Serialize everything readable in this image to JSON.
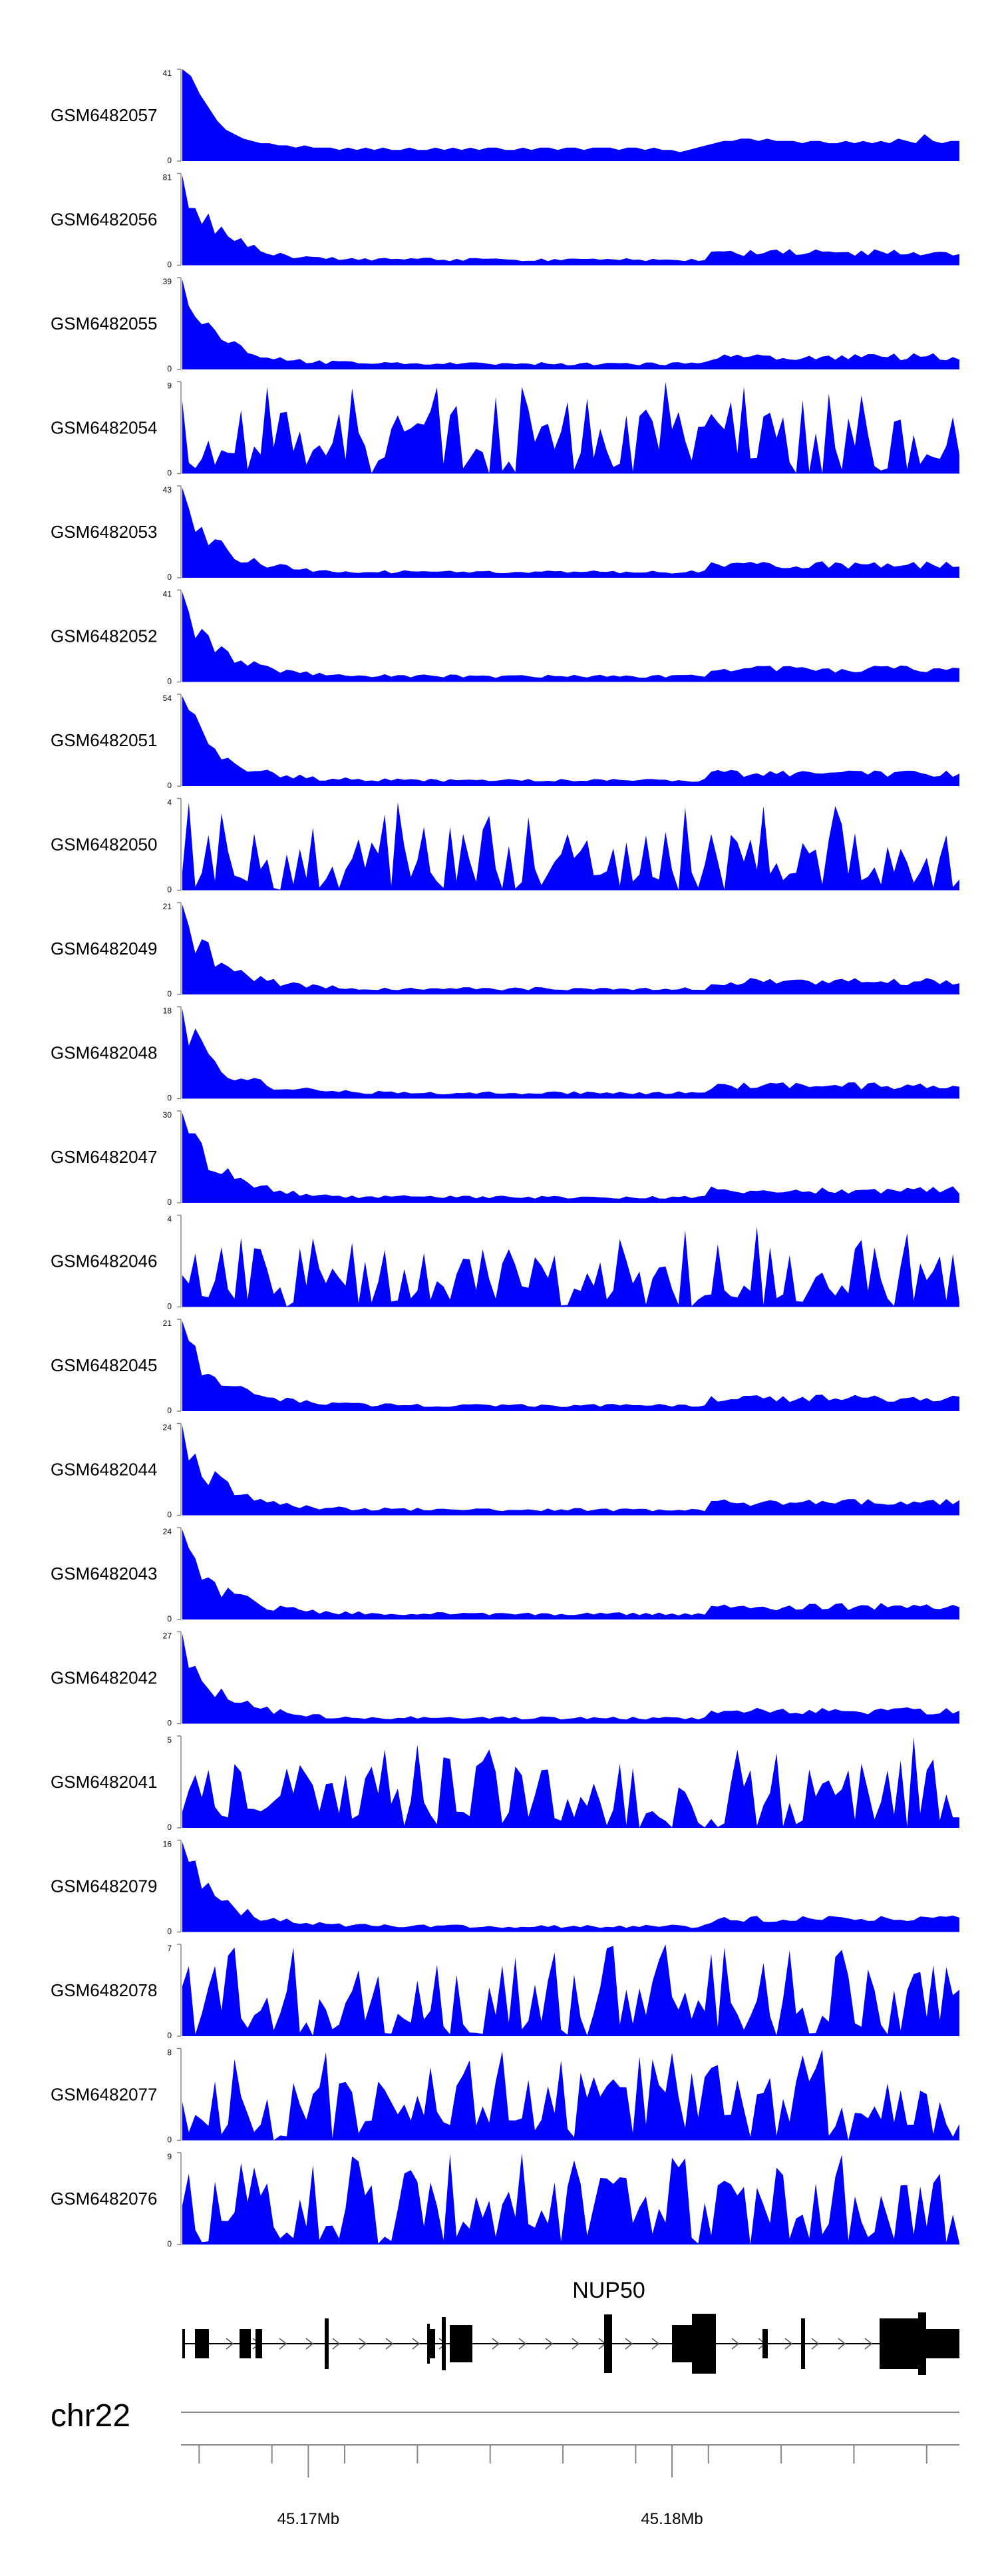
{
  "chart_data": {
    "type": "area",
    "series_color": "#0000ff",
    "tracks": [
      {
        "name": "GSM6482057",
        "ymax": 41,
        "ymin": 0,
        "profile": "decay",
        "values": [
          41,
          38,
          30,
          24,
          18,
          14,
          12,
          10,
          9,
          8,
          8,
          7,
          7,
          6,
          7,
          6,
          6,
          6,
          5,
          6,
          5,
          6,
          5,
          6,
          5,
          5,
          6,
          5,
          5,
          6,
          5,
          6,
          5,
          6,
          5,
          6,
          6,
          5,
          5,
          6,
          5,
          6,
          6,
          5,
          6,
          6,
          5,
          6,
          6,
          6,
          5,
          6,
          6,
          5,
          6,
          5,
          5,
          4,
          5,
          6,
          7,
          8,
          9,
          9,
          10,
          10,
          9,
          10,
          9,
          9,
          9,
          8,
          9,
          9,
          8,
          8,
          9,
          8,
          9,
          8,
          9,
          8,
          10,
          9,
          8,
          12,
          9,
          8,
          9,
          9
        ]
      },
      {
        "name": "GSM6482056",
        "ymax": 81
      },
      {
        "name": "GSM6482055",
        "ymax": 39
      },
      {
        "name": "GSM6482054",
        "ymax": 9
      },
      {
        "name": "GSM6482053",
        "ymax": 43
      },
      {
        "name": "GSM6482052",
        "ymax": 41
      },
      {
        "name": "GSM6482051",
        "ymax": 54
      },
      {
        "name": "GSM6482050",
        "ymax": 4
      },
      {
        "name": "GSM6482049",
        "ymax": 21
      },
      {
        "name": "GSM6482048",
        "ymax": 18
      },
      {
        "name": "GSM6482047",
        "ymax": 30
      },
      {
        "name": "GSM6482046",
        "ymax": 4
      },
      {
        "name": "GSM6482045",
        "ymax": 21
      },
      {
        "name": "GSM6482044",
        "ymax": 24
      },
      {
        "name": "GSM6482043",
        "ymax": 24
      },
      {
        "name": "GSM6482042",
        "ymax": 27
      },
      {
        "name": "GSM6482041",
        "ymax": 5
      },
      {
        "name": "GSM6482079",
        "ymax": 16
      },
      {
        "name": "GSM6482078",
        "ymax": 7
      },
      {
        "name": "GSM6482077",
        "ymax": 8
      },
      {
        "name": "GSM6482076",
        "ymax": 9
      }
    ],
    "gene": {
      "name": "NUP50",
      "strand": "+"
    },
    "chromosome": "chr22",
    "ticks": [
      {
        "label": "45.17Mb",
        "position_bp": 45170000
      },
      {
        "label": "45.18Mb",
        "position_bp": 45180000
      }
    ],
    "x_range_bp": [
      45166500,
      45187900
    ]
  }
}
